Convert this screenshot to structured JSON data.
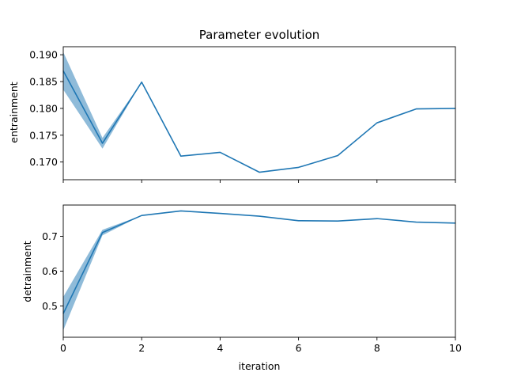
{
  "chart_data": {
    "type": "line",
    "title": "Parameter evolution",
    "xlabel": "iteration",
    "x": [
      0,
      1,
      2,
      3,
      4,
      5,
      6,
      7,
      8,
      9,
      10
    ],
    "xlim": [
      0,
      10
    ],
    "xticks": [
      "0",
      "2",
      "4",
      "6",
      "8",
      "10"
    ],
    "shared_x": true,
    "color": "#1f77b4",
    "band_color": "#1f77b4",
    "panels": [
      {
        "ylabel": "entrainment",
        "ylim": [
          0.1667,
          0.1915
        ],
        "yticks": [
          "0.170",
          "0.175",
          "0.180",
          "0.185",
          "0.190"
        ],
        "series": [
          {
            "values": [
              0.187,
              0.1735,
              0.1849,
              0.1711,
              0.1718,
              0.1681,
              0.169,
              0.1712,
              0.1773,
              0.1799,
              0.18
            ],
            "band_lower": [
              0.1835,
              0.1725,
              0.1849,
              0.1711,
              0.1718,
              0.1681,
              0.169,
              0.1712,
              0.1773,
              0.1799,
              0.18
            ],
            "band_upper": [
              0.1905,
              0.1745,
              0.1849,
              0.1711,
              0.1718,
              0.1681,
              0.169,
              0.1712,
              0.1773,
              0.1799,
              0.18
            ]
          }
        ]
      },
      {
        "ylabel": "detrainment",
        "ylim": [
          0.41,
          0.79
        ],
        "yticks": [
          "0.5",
          "0.6",
          "0.7"
        ],
        "series": [
          {
            "values": [
              0.478,
              0.711,
              0.76,
              0.773,
              0.766,
              0.758,
              0.745,
              0.744,
              0.751,
              0.741,
              0.738
            ],
            "band_lower": [
              0.43,
              0.703,
              0.76,
              0.773,
              0.766,
              0.758,
              0.745,
              0.744,
              0.751,
              0.741,
              0.738
            ],
            "band_upper": [
              0.526,
              0.719,
              0.76,
              0.773,
              0.766,
              0.758,
              0.745,
              0.744,
              0.751,
              0.741,
              0.738
            ]
          }
        ]
      }
    ]
  }
}
